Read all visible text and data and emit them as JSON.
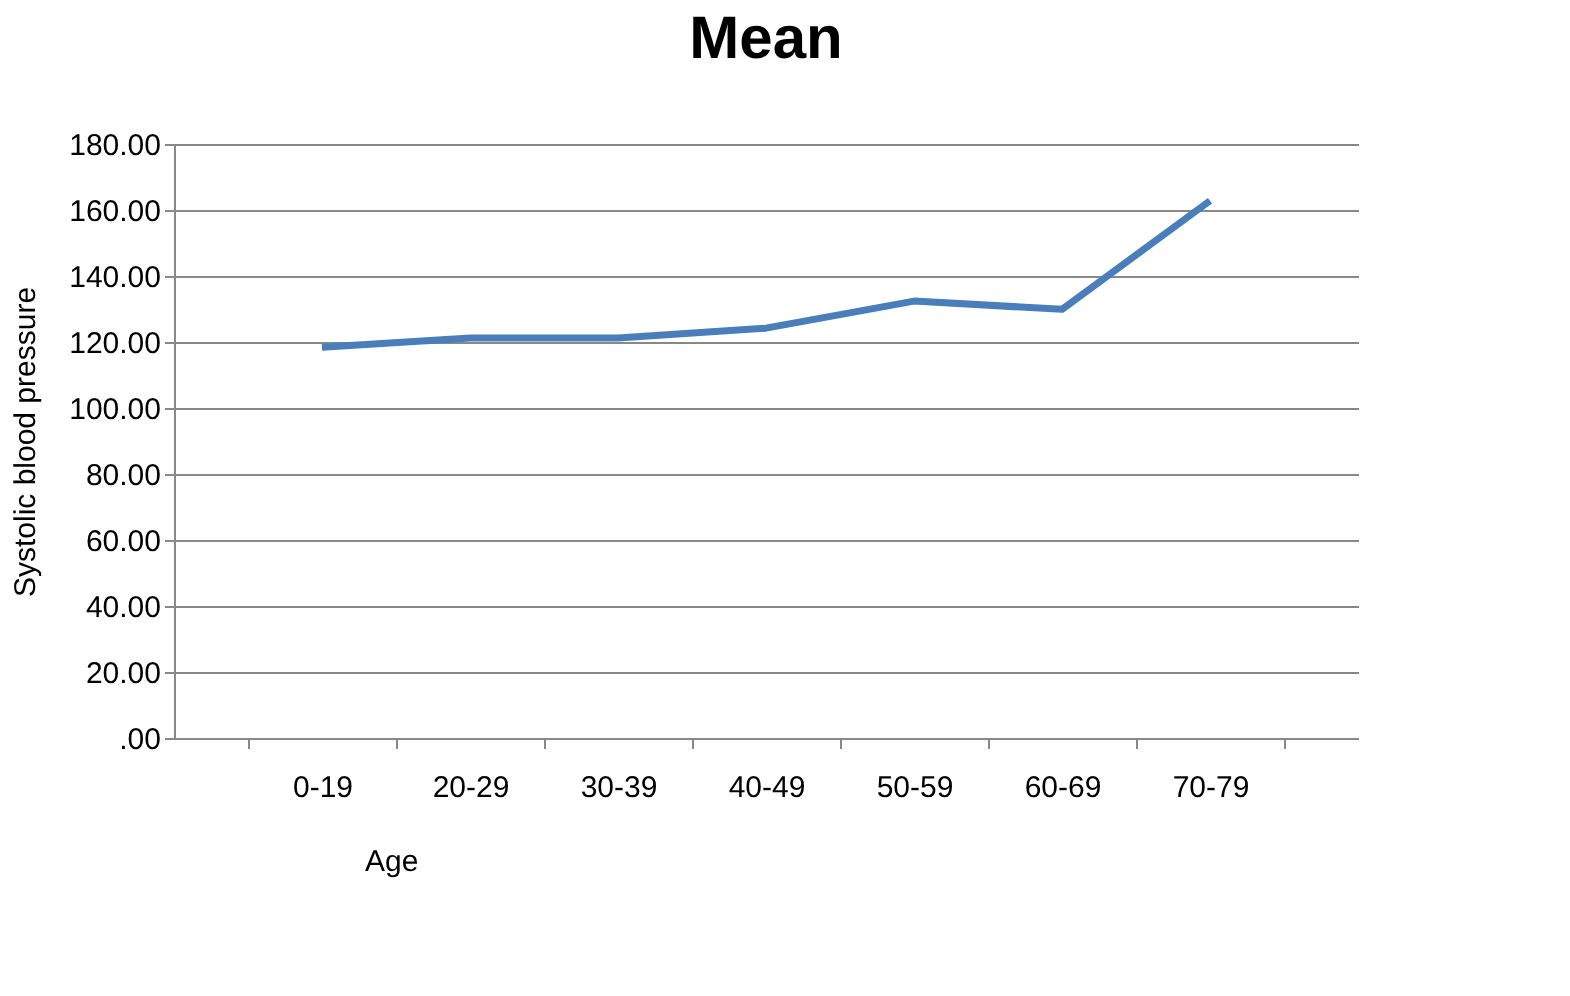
{
  "chart_data": {
    "type": "line",
    "title": "Mean",
    "xlabel": "Age",
    "ylabel": "Systolic blood pressure",
    "categories": [
      "0-19",
      "20-29",
      "30-39",
      "40-49",
      "50-59",
      "60-69",
      "70-79"
    ],
    "series": [
      {
        "color": "#4a7ebb",
        "values": [
          118.4,
          121.2,
          121.2,
          124.2,
          132.4,
          129.9,
          162.8
        ]
      }
    ],
    "ylim": [
      0,
      180
    ],
    "yticks": [
      {
        "value": 0,
        "label": ".00"
      },
      {
        "value": 20,
        "label": "20.00"
      },
      {
        "value": 40,
        "label": "40.00"
      },
      {
        "value": 60,
        "label": "60.00"
      },
      {
        "value": 80,
        "label": "80.00"
      },
      {
        "value": 100,
        "label": "100.00"
      },
      {
        "value": 120,
        "label": "120.00"
      },
      {
        "value": 140,
        "label": "140.00"
      },
      {
        "value": 160,
        "label": "160.00"
      },
      {
        "value": 180,
        "label": "180.00"
      }
    ],
    "grid": "y",
    "marker": "none",
    "line_style": "solid"
  }
}
